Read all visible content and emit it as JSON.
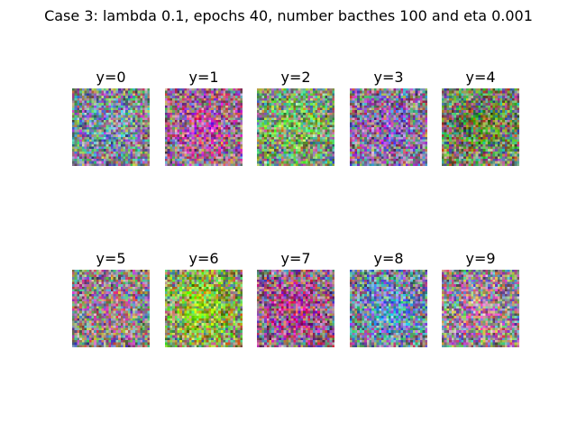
{
  "figure": {
    "title": "Case 3: lambda 0.1, epochs 40, number bacthes 100 and eta 0.001"
  },
  "panels": [
    {
      "label": "y=0",
      "tint": "#7f8fa0"
    },
    {
      "label": "y=1",
      "tint": "#b0609a"
    },
    {
      "label": "y=2",
      "tint": "#7fae6a"
    },
    {
      "label": "y=3",
      "tint": "#8f6aa6"
    },
    {
      "label": "y=4",
      "tint": "#6e7f52"
    },
    {
      "label": "y=5",
      "tint": "#9a7f8a"
    },
    {
      "label": "y=6",
      "tint": "#8fbe3a"
    },
    {
      "label": "y=7",
      "tint": "#a4508f"
    },
    {
      "label": "y=8",
      "tint": "#6a90b8"
    },
    {
      "label": "y=9",
      "tint": "#a88a9a"
    }
  ]
}
